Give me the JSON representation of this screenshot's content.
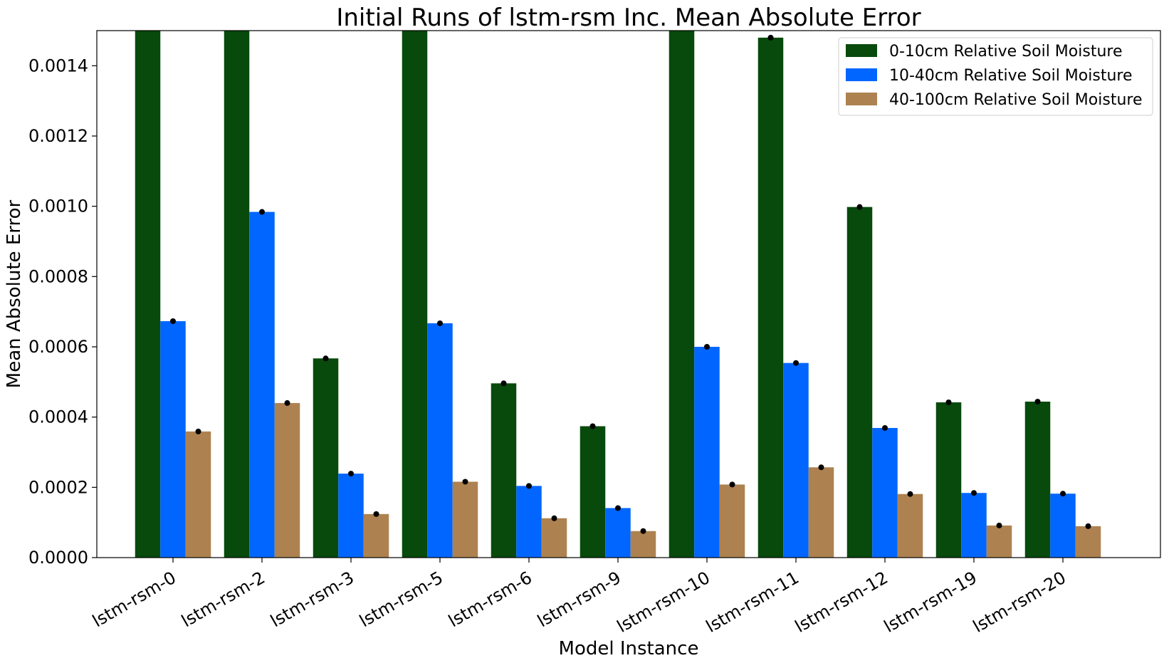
{
  "chart_data": {
    "type": "bar",
    "title": "Initial Runs of lstm-rsm Inc. Mean Absolute Error",
    "xlabel": "Model Instance",
    "ylabel": "Mean Absolute Error",
    "ylim": [
      0,
      0.0015
    ],
    "yticks": [
      "0.0000",
      "0.0002",
      "0.0004",
      "0.0006",
      "0.0008",
      "0.0010",
      "0.0012",
      "0.0014"
    ],
    "ytick_values": [
      0,
      0.0002,
      0.0004,
      0.0006,
      0.0008,
      0.001,
      0.0012,
      0.0014
    ],
    "grid": false,
    "legend_position": "top-right",
    "categories": [
      "lstm-rsm-0",
      "lstm-rsm-2",
      "lstm-rsm-3",
      "lstm-rsm-5",
      "lstm-rsm-6",
      "lstm-rsm-9",
      "lstm-rsm-10",
      "lstm-rsm-11",
      "lstm-rsm-12",
      "lstm-rsm-19",
      "lstm-rsm-20"
    ],
    "series": [
      {
        "name": "0-10cm Relative Soil Moisture",
        "color": "#074a0c",
        "values": [
          0.00152,
          0.00152,
          0.000567,
          0.00152,
          0.000496,
          0.000374,
          0.00152,
          0.00148,
          0.000998,
          0.000442,
          0.000444
        ]
      },
      {
        "name": "10-40cm Relative Soil Moisture",
        "color": "#0066ff",
        "values": [
          0.000673,
          0.000984,
          0.000239,
          0.000667,
          0.000204,
          0.000141,
          0.0006,
          0.000554,
          0.000369,
          0.000184,
          0.000182
        ]
      },
      {
        "name": "40-100cm Relative Soil Moisture",
        "color": "#ad8250",
        "values": [
          0.000359,
          0.00044,
          0.000124,
          0.000216,
          0.000112,
          7.55e-05,
          0.000208,
          0.000257,
          0.000181,
          9.14e-05,
          8.94e-05
        ]
      }
    ]
  }
}
